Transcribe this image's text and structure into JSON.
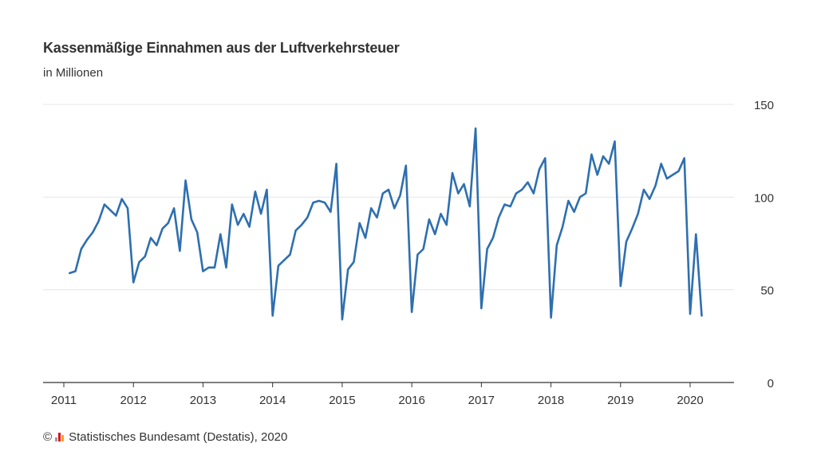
{
  "title": "Kassenmäßige Einnahmen aus der Luftverkehrsteuer",
  "subtitle": "in Millionen",
  "footer": {
    "copyright_symbol": "©",
    "source": "Statistisches Bundesamt (Destatis), 2020",
    "logo_icon": "destatis-logo-icon",
    "logo_colors": [
      "#9b9b9b",
      "#e30613",
      "#f5a800"
    ]
  },
  "colors": {
    "line": "#2e6faf",
    "grid": "#e4e4e4",
    "axis": "#333333"
  },
  "chart_data": {
    "type": "line",
    "title": "Kassenmäßige Einnahmen aus der Luftverkehrsteuer",
    "subtitle": "in Millionen",
    "xlabel": "",
    "ylabel": "",
    "x_ticks": [
      "2011",
      "2012",
      "2013",
      "2014",
      "2015",
      "2016",
      "2017",
      "2018",
      "2019",
      "2020"
    ],
    "y_ticks": [
      0,
      50,
      100,
      150
    ],
    "ylim": [
      0,
      150
    ],
    "y_axis_side": "right",
    "grid": true,
    "legend": "none",
    "series": [
      {
        "x": [
          "2011-02",
          "2011-03",
          "2011-04",
          "2011-05",
          "2011-06",
          "2011-07",
          "2011-08",
          "2011-09",
          "2011-10",
          "2011-11",
          "2011-12",
          "2012-01",
          "2012-02",
          "2012-03",
          "2012-04",
          "2012-05",
          "2012-06",
          "2012-07",
          "2012-08",
          "2012-09",
          "2012-10",
          "2012-11",
          "2012-12",
          "2013-01",
          "2013-02",
          "2013-03",
          "2013-04",
          "2013-05",
          "2013-06",
          "2013-07",
          "2013-08",
          "2013-09",
          "2013-10",
          "2013-11",
          "2013-12",
          "2014-01",
          "2014-02",
          "2014-03",
          "2014-04",
          "2014-05",
          "2014-06",
          "2014-07",
          "2014-08",
          "2014-09",
          "2014-10",
          "2014-11",
          "2014-12",
          "2015-01",
          "2015-02",
          "2015-03",
          "2015-04",
          "2015-05",
          "2015-06",
          "2015-07",
          "2015-08",
          "2015-09",
          "2015-10",
          "2015-11",
          "2015-12",
          "2016-01",
          "2016-02",
          "2016-03",
          "2016-04",
          "2016-05",
          "2016-06",
          "2016-07",
          "2016-08",
          "2016-09",
          "2016-10",
          "2016-11",
          "2016-12",
          "2017-01",
          "2017-02",
          "2017-03",
          "2017-04",
          "2017-05",
          "2017-06",
          "2017-07",
          "2017-08",
          "2017-09",
          "2017-10",
          "2017-11",
          "2017-12",
          "2018-01",
          "2018-02",
          "2018-03",
          "2018-04",
          "2018-05",
          "2018-06",
          "2018-07",
          "2018-08",
          "2018-09",
          "2018-10",
          "2018-11",
          "2018-12",
          "2019-01",
          "2019-02",
          "2019-03",
          "2019-04",
          "2019-05",
          "2019-06",
          "2019-07",
          "2019-08",
          "2019-09",
          "2019-10",
          "2019-11",
          "2019-12",
          "2020-01",
          "2020-02",
          "2020-03"
        ],
        "values": [
          59,
          60,
          72,
          77,
          81,
          87,
          96,
          93,
          90,
          99,
          94,
          54,
          65,
          68,
          78,
          74,
          83,
          86,
          94,
          71,
          109,
          88,
          81,
          60,
          62,
          62,
          80,
          62,
          96,
          85,
          91,
          84,
          103,
          91,
          104,
          36,
          63,
          66,
          69,
          82,
          85,
          89,
          97,
          98,
          97,
          92,
          118,
          34,
          61,
          65,
          86,
          78,
          94,
          89,
          102,
          104,
          94,
          101,
          117,
          38,
          69,
          72,
          88,
          80,
          91,
          85,
          113,
          102,
          107,
          95,
          137,
          40,
          72,
          78,
          89,
          96,
          95,
          102,
          104,
          108,
          102,
          115,
          121,
          35,
          74,
          84,
          98,
          92,
          100,
          102,
          123,
          112,
          122,
          118,
          130,
          52,
          76,
          83,
          91,
          104,
          99,
          106,
          118,
          110,
          112,
          114,
          121,
          37,
          80,
          36
        ]
      }
    ]
  }
}
